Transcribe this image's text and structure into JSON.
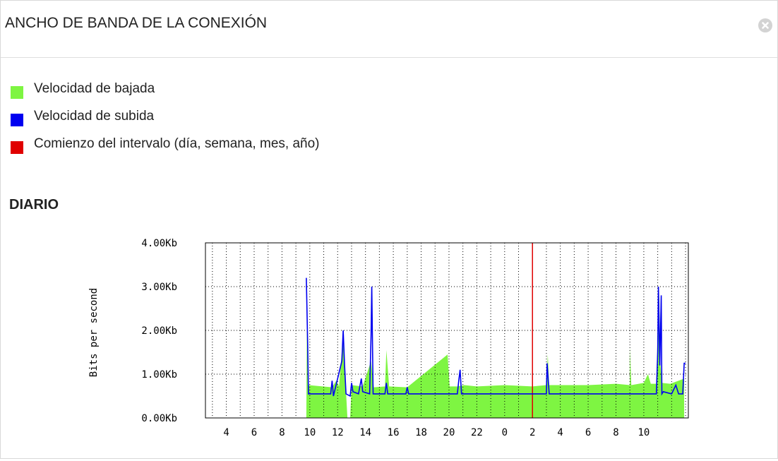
{
  "panel": {
    "title": "ANCHO DE BANDA DE LA CONEXIÓN",
    "close_icon": "close-circle-icon"
  },
  "legend": [
    {
      "label": "Velocidad de bajada",
      "color": "#7ef542"
    },
    {
      "label": "Velocidad de subida",
      "color": "#0000f0"
    },
    {
      "label": "Comienzo del intervalo (día, semana, mes, año)",
      "color": "#e00000"
    }
  ],
  "section": {
    "title": "DIARIO"
  },
  "chart_data": {
    "type": "area",
    "ylabel": "Bits per second",
    "yticks": [
      "0.00Kb",
      "1.00Kb",
      "2.00Kb",
      "3.00Kb",
      "4.00Kb"
    ],
    "ylim": [
      0,
      4
    ],
    "xticks": [
      "4",
      "6",
      "8",
      "10",
      "12",
      "14",
      "16",
      "18",
      "20",
      "22",
      "0",
      "2",
      "4",
      "6",
      "8",
      "10"
    ],
    "grid": true,
    "interval_start_marker": "0",
    "series": [
      {
        "name": "Velocidad de bajada",
        "color": "#7ef542",
        "points": [
          [
            0,
            0
          ],
          [
            9.75,
            0
          ],
          [
            9.8,
            2.7
          ],
          [
            9.9,
            0.75
          ],
          [
            11.6,
            0.7
          ],
          [
            11.9,
            0.85
          ],
          [
            12.1,
            0.72
          ],
          [
            12.4,
            1.9
          ],
          [
            12.6,
            0.6
          ],
          [
            12.7,
            0
          ],
          [
            12.9,
            0
          ],
          [
            13.0,
            0.75
          ],
          [
            13.8,
            0.72
          ],
          [
            14.4,
            1.3
          ],
          [
            14.6,
            0.7
          ],
          [
            15.4,
            0.72
          ],
          [
            15.5,
            1.55
          ],
          [
            15.7,
            0.72
          ],
          [
            17.0,
            0.7
          ],
          [
            19.9,
            1.45
          ],
          [
            20.05,
            0.72
          ],
          [
            20.6,
            0.72
          ],
          [
            21.1,
            0.75
          ],
          [
            22.0,
            0.72
          ],
          [
            24.0,
            0.75
          ],
          [
            26.0,
            0.72
          ],
          [
            27.0,
            0.75
          ],
          [
            27.1,
            1.45
          ],
          [
            27.2,
            0.75
          ],
          [
            30.0,
            0.75
          ],
          [
            32.0,
            0.78
          ],
          [
            33.0,
            0.75
          ],
          [
            33.0,
            1.62
          ],
          [
            33.1,
            0.75
          ],
          [
            34.0,
            0.8
          ],
          [
            34.3,
            1.0
          ],
          [
            34.5,
            0.78
          ],
          [
            34.9,
            0.78
          ],
          [
            35.0,
            2.0
          ],
          [
            35.1,
            2.8
          ],
          [
            35.2,
            1.2
          ],
          [
            35.3,
            0.8
          ],
          [
            35.9,
            0.78
          ],
          [
            36.5,
            0.85
          ],
          [
            36.9,
            0.9
          ]
        ]
      },
      {
        "name": "Velocidad de subida",
        "color": "#0000f0",
        "points": [
          [
            9.75,
            3.2
          ],
          [
            9.85,
            1.6
          ],
          [
            9.9,
            0.55
          ],
          [
            11.5,
            0.55
          ],
          [
            11.6,
            0.85
          ],
          [
            11.7,
            0.5
          ],
          [
            12.3,
            1.3
          ],
          [
            12.4,
            2.0
          ],
          [
            12.5,
            1.2
          ],
          [
            12.6,
            0.55
          ],
          [
            12.9,
            0.5
          ],
          [
            13.0,
            0.8
          ],
          [
            13.1,
            0.6
          ],
          [
            13.5,
            0.55
          ],
          [
            13.7,
            0.9
          ],
          [
            13.8,
            0.6
          ],
          [
            14.3,
            0.55
          ],
          [
            14.4,
            1.9
          ],
          [
            14.45,
            3.0
          ],
          [
            14.55,
            0.55
          ],
          [
            15.4,
            0.55
          ],
          [
            15.5,
            0.8
          ],
          [
            15.6,
            0.55
          ],
          [
            16.9,
            0.55
          ],
          [
            17.0,
            0.7
          ],
          [
            17.1,
            0.55
          ],
          [
            20.6,
            0.55
          ],
          [
            20.7,
            0.85
          ],
          [
            20.8,
            1.1
          ],
          [
            20.9,
            0.55
          ],
          [
            27.0,
            0.55
          ],
          [
            27.05,
            1.25
          ],
          [
            27.2,
            0.55
          ],
          [
            34.9,
            0.55
          ],
          [
            35.0,
            1.5
          ],
          [
            35.05,
            3.0
          ],
          [
            35.15,
            1.2
          ],
          [
            35.25,
            2.8
          ],
          [
            35.3,
            0.55
          ],
          [
            35.4,
            0.6
          ],
          [
            36.0,
            0.55
          ],
          [
            36.3,
            0.75
          ],
          [
            36.5,
            0.55
          ],
          [
            36.8,
            0.55
          ],
          [
            36.9,
            1.25
          ],
          [
            37.0,
            1.25
          ]
        ]
      }
    ]
  }
}
